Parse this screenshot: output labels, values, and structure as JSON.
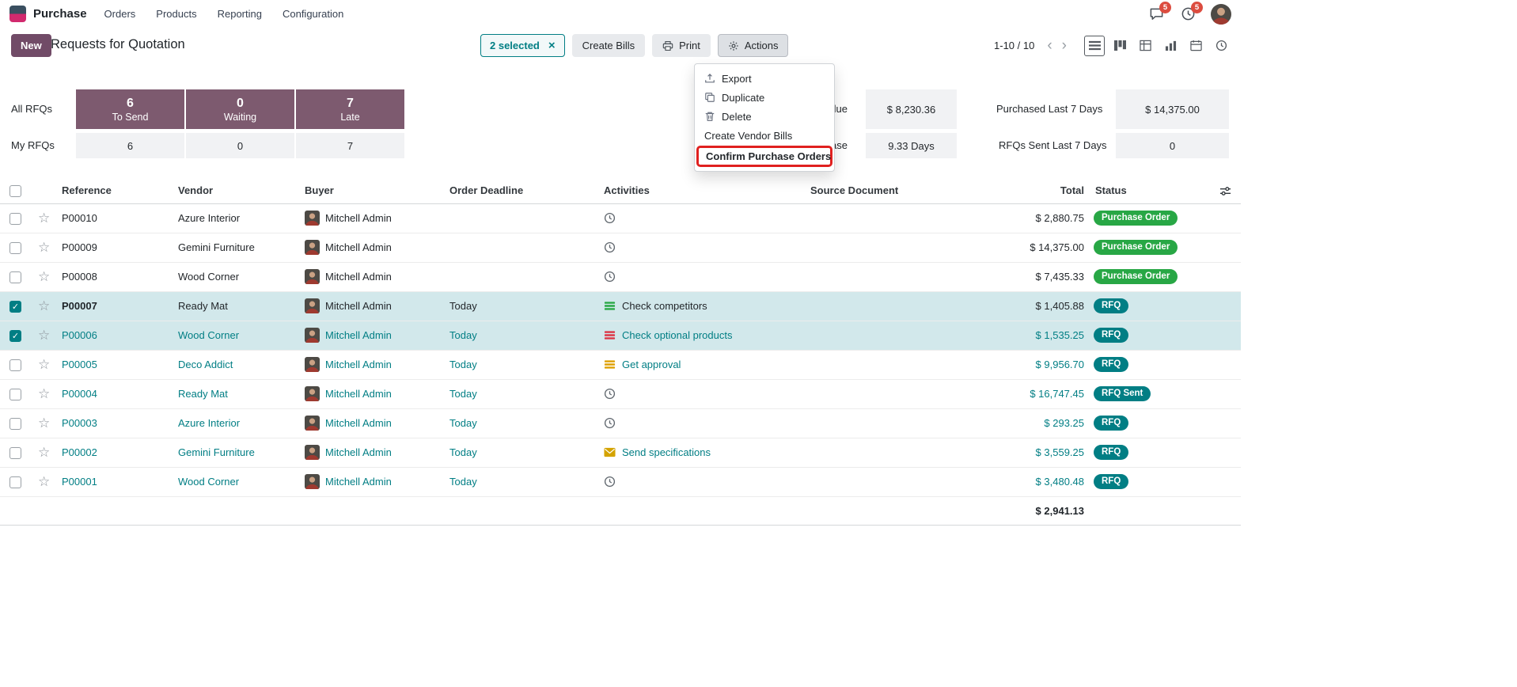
{
  "navbar": {
    "app_name": "Purchase",
    "menus": [
      {
        "label": "Orders"
      },
      {
        "label": "Products"
      },
      {
        "label": "Reporting"
      },
      {
        "label": "Configuration"
      }
    ],
    "messages_badge": "5",
    "activities_badge": "5"
  },
  "control_panel": {
    "new_label": "New",
    "title": "Requests for Quotation",
    "selected_label": "2 selected",
    "create_bills_label": "Create Bills",
    "print_label": "Print",
    "actions_label": "Actions",
    "pager_text": "1-10 / 10"
  },
  "actions_menu": {
    "items": [
      {
        "label": "Export",
        "icon": "export",
        "highlighted": false
      },
      {
        "label": "Duplicate",
        "icon": "duplicate",
        "highlighted": false
      },
      {
        "label": "Delete",
        "icon": "trash",
        "highlighted": false
      },
      {
        "label": "Create Vendor Bills",
        "icon": "",
        "highlighted": false
      },
      {
        "label": "Confirm Purchase Orders",
        "icon": "",
        "highlighted": true
      }
    ]
  },
  "dashboard": {
    "all_rfqs_label": "All RFQs",
    "my_rfqs_label": "My RFQs",
    "tiles": [
      {
        "value": "6",
        "caption": "To Send",
        "my_value": "6"
      },
      {
        "value": "0",
        "caption": "Waiting",
        "my_value": "0"
      },
      {
        "value": "7",
        "caption": "Late",
        "my_value": "7"
      }
    ],
    "stats": [
      {
        "label": "Avg Order Value",
        "value": "$ 8,230.36"
      },
      {
        "label": "Purchased Last 7 Days",
        "value": "$ 14,375.00"
      },
      {
        "label": "Avg Days to Purchase",
        "value": "9.33 Days"
      },
      {
        "label": "RFQs Sent Last 7 Days",
        "value": "0"
      }
    ]
  },
  "table": {
    "headers": {
      "reference": "Reference",
      "vendor": "Vendor",
      "buyer": "Buyer",
      "deadline": "Order Deadline",
      "activities": "Activities",
      "source": "Source Document",
      "total": "Total",
      "status": "Status"
    },
    "rows": [
      {
        "reference": "P00010",
        "vendor": "Azure Interior",
        "buyer": "Mitchell Admin",
        "deadline": "",
        "activity": "",
        "activity_icon": "clock",
        "activity_color": "#5f666d",
        "source": "",
        "total": "$ 2,880.75",
        "status": "Purchase Order",
        "status_color": "green",
        "checked": false,
        "selected": false,
        "tone": "dark",
        "bold_ref": false
      },
      {
        "reference": "P00009",
        "vendor": "Gemini Furniture",
        "buyer": "Mitchell Admin",
        "deadline": "",
        "activity": "",
        "activity_icon": "clock",
        "activity_color": "#5f666d",
        "source": "",
        "total": "$ 14,375.00",
        "status": "Purchase Order",
        "status_color": "green",
        "checked": false,
        "selected": false,
        "tone": "dark",
        "bold_ref": false
      },
      {
        "reference": "P00008",
        "vendor": "Wood Corner",
        "buyer": "Mitchell Admin",
        "deadline": "",
        "activity": "",
        "activity_icon": "clock",
        "activity_color": "#5f666d",
        "source": "",
        "total": "$ 7,435.33",
        "status": "Purchase Order",
        "status_color": "green",
        "checked": false,
        "selected": false,
        "tone": "dark",
        "bold_ref": false
      },
      {
        "reference": "P00007",
        "vendor": "Ready Mat",
        "buyer": "Mitchell Admin",
        "deadline": "Today",
        "activity": "Check competitors",
        "activity_icon": "list",
        "activity_color": "#28a745",
        "source": "",
        "total": "$ 1,405.88",
        "status": "RFQ",
        "status_color": "teal",
        "checked": true,
        "selected": true,
        "tone": "dark",
        "bold_ref": true
      },
      {
        "reference": "P00006",
        "vendor": "Wood Corner",
        "buyer": "Mitchell Admin",
        "deadline": "Today",
        "activity": "Check optional products",
        "activity_icon": "list",
        "activity_color": "#dc3545",
        "source": "",
        "total": "$ 1,535.25",
        "status": "RFQ",
        "status_color": "teal",
        "checked": true,
        "selected": true,
        "tone": "teal",
        "bold_ref": false
      },
      {
        "reference": "P00005",
        "vendor": "Deco Addict",
        "buyer": "Mitchell Admin",
        "deadline": "Today",
        "activity": "Get approval",
        "activity_icon": "list",
        "activity_color": "#dd9f00",
        "source": "",
        "total": "$ 9,956.70",
        "status": "RFQ",
        "status_color": "teal",
        "checked": false,
        "selected": false,
        "tone": "teal",
        "bold_ref": false
      },
      {
        "reference": "P00004",
        "vendor": "Ready Mat",
        "buyer": "Mitchell Admin",
        "deadline": "Today",
        "activity": "",
        "activity_icon": "clock",
        "activity_color": "#5f666d",
        "source": "",
        "total": "$ 16,747.45",
        "status": "RFQ Sent",
        "status_color": "teal",
        "checked": false,
        "selected": false,
        "tone": "teal",
        "bold_ref": false
      },
      {
        "reference": "P00003",
        "vendor": "Azure Interior",
        "buyer": "Mitchell Admin",
        "deadline": "Today",
        "activity": "",
        "activity_icon": "clock",
        "activity_color": "#5f666d",
        "source": "",
        "total": "$ 293.25",
        "status": "RFQ",
        "status_color": "teal",
        "checked": false,
        "selected": false,
        "tone": "teal",
        "bold_ref": false
      },
      {
        "reference": "P00002",
        "vendor": "Gemini Furniture",
        "buyer": "Mitchell Admin",
        "deadline": "Today",
        "activity": "Send specifications",
        "activity_icon": "envelope",
        "activity_color": "#d4a300",
        "source": "",
        "total": "$ 3,559.25",
        "status": "RFQ",
        "status_color": "teal",
        "checked": false,
        "selected": false,
        "tone": "teal",
        "bold_ref": false
      },
      {
        "reference": "P00001",
        "vendor": "Wood Corner",
        "buyer": "Mitchell Admin",
        "deadline": "Today",
        "activity": "",
        "activity_icon": "clock",
        "activity_color": "#5f666d",
        "source": "",
        "total": "$ 3,480.48",
        "status": "RFQ",
        "status_color": "teal",
        "checked": false,
        "selected": false,
        "tone": "teal",
        "bold_ref": false
      }
    ],
    "footer_total": "$ 2,941.13"
  },
  "colors": {
    "brand_purple": "#714B67",
    "tile_purple": "#7d5a6f",
    "teal": "#017e84",
    "green_badge": "#28a745",
    "selected_row": "#d2e8eb",
    "badge_red": "#dc4c3f",
    "red_highlight": "#e0201f"
  }
}
